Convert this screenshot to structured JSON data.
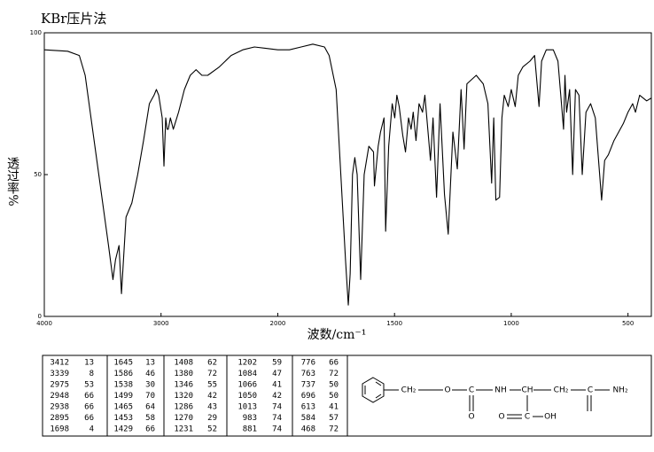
{
  "chart_data": {
    "type": "line",
    "title": "KBr压片法",
    "xlabel": "波数/cm⁻¹",
    "ylabel": "透过率%",
    "xlim": [
      4000,
      400
    ],
    "xticks": [
      4000,
      3000,
      2000,
      1500,
      1000,
      500
    ],
    "ylim": [
      0,
      100
    ],
    "yticks": [
      0,
      50,
      100
    ],
    "color": "#000000",
    "x": [
      4000,
      3800,
      3700,
      3650,
      3600,
      3550,
      3500,
      3450,
      3412,
      3390,
      3360,
      3339,
      3300,
      3250,
      3200,
      3150,
      3100,
      3060,
      3040,
      3020,
      2990,
      2975,
      2960,
      2948,
      2938,
      2920,
      2895,
      2850,
      2800,
      2750,
      2700,
      2650,
      2600,
      2500,
      2400,
      2300,
      2200,
      2100,
      2000,
      1950,
      1900,
      1850,
      1800,
      1780,
      1750,
      1730,
      1710,
      1698,
      1690,
      1680,
      1670,
      1660,
      1645,
      1630,
      1610,
      1590,
      1586,
      1570,
      1560,
      1545,
      1538,
      1525,
      1510,
      1499,
      1490,
      1480,
      1465,
      1453,
      1440,
      1429,
      1420,
      1408,
      1395,
      1380,
      1370,
      1346,
      1335,
      1320,
      1305,
      1286,
      1270,
      1250,
      1231,
      1215,
      1202,
      1190,
      1150,
      1120,
      1100,
      1084,
      1075,
      1066,
      1050,
      1040,
      1030,
      1013,
      1000,
      983,
      970,
      950,
      920,
      900,
      881,
      870,
      850,
      820,
      800,
      776,
      770,
      763,
      750,
      737,
      725,
      710,
      696,
      680,
      660,
      640,
      613,
      600,
      584,
      560,
      520,
      500,
      480,
      468,
      450,
      420,
      400
    ],
    "values": [
      94,
      93.5,
      92,
      85,
      70,
      55,
      40,
      25,
      13,
      20,
      25,
      8,
      35,
      40,
      50,
      62,
      75,
      78,
      80,
      78,
      70,
      53,
      70,
      66,
      66,
      70,
      66,
      72,
      80,
      85,
      87,
      85,
      85,
      88,
      92,
      94,
      95,
      94.5,
      94,
      94,
      95,
      96,
      95,
      92,
      80,
      50,
      20,
      4,
      15,
      50,
      56,
      50,
      13,
      50,
      60,
      58,
      46,
      60,
      65,
      70,
      30,
      60,
      75,
      70,
      78,
      74,
      64,
      58,
      70,
      66,
      72,
      62,
      75,
      72,
      78,
      55,
      70,
      42,
      75,
      43,
      29,
      65,
      52,
      80,
      59,
      82,
      85,
      82,
      75,
      47,
      70,
      41,
      42,
      70,
      78,
      74,
      80,
      74,
      85,
      88,
      90,
      92,
      74,
      90,
      94,
      94,
      90,
      66,
      85,
      72,
      80,
      50,
      80,
      78,
      50,
      72,
      75,
      70,
      41,
      55,
      57,
      62,
      68,
      72,
      75,
      72,
      78,
      76,
      77
    ]
  },
  "table": {
    "columns": [
      [
        [
          3412,
          13
        ],
        [
          3339,
          8
        ],
        [
          2975,
          53
        ],
        [
          2948,
          66
        ],
        [
          2938,
          66
        ],
        [
          2895,
          66
        ],
        [
          1698,
          4
        ]
      ],
      [
        [
          1645,
          13
        ],
        [
          1586,
          46
        ],
        [
          1538,
          30
        ],
        [
          1499,
          70
        ],
        [
          1465,
          64
        ],
        [
          1453,
          58
        ],
        [
          1429,
          66
        ]
      ],
      [
        [
          1408,
          62
        ],
        [
          1380,
          72
        ],
        [
          1346,
          55
        ],
        [
          1320,
          42
        ],
        [
          1286,
          43
        ],
        [
          1270,
          29
        ],
        [
          1231,
          52
        ]
      ],
      [
        [
          1202,
          59
        ],
        [
          1084,
          47
        ],
        [
          1066,
          41
        ],
        [
          1050,
          42
        ],
        [
          1013,
          74
        ],
        [
          983,
          74
        ],
        [
          881,
          74
        ]
      ],
      [
        [
          776,
          66
        ],
        [
          763,
          72
        ],
        [
          737,
          50
        ],
        [
          696,
          50
        ],
        [
          613,
          41
        ],
        [
          584,
          57
        ],
        [
          468,
          72
        ]
      ]
    ]
  },
  "structure": {
    "labels": [
      "CH₂",
      "O",
      "C",
      "NH",
      "CH",
      "CH₂",
      "C",
      "NH₂",
      "O",
      "O",
      "C",
      "OH"
    ]
  }
}
